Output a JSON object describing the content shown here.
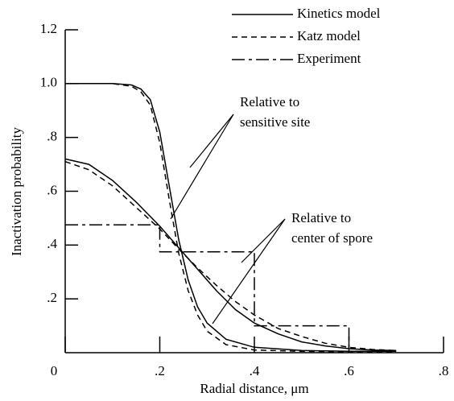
{
  "chart_data": {
    "type": "line",
    "ylabel": "Inactivation probability",
    "xlabel": "Radial distance, μm",
    "xlim": [
      0,
      0.8
    ],
    "ylim": [
      0,
      1.2
    ],
    "xticks": [
      0,
      {
        "value": 0.2,
        "label": ".2"
      },
      {
        "value": 0.4,
        "label": ".4"
      },
      {
        "value": 0.6,
        "label": ".6"
      },
      {
        "value": 0.8,
        "label": ".8"
      }
    ],
    "yticks": [
      {
        "value": 0.2,
        "label": ".2"
      },
      {
        "value": 0.4,
        "label": ".4"
      },
      {
        "value": 0.6,
        "label": ".6"
      },
      {
        "value": 0.8,
        "label": ".8"
      },
      {
        "value": 1.0,
        "label": "1.0"
      },
      {
        "value": 1.2,
        "label": "1.2"
      }
    ],
    "series": [
      {
        "name": "Kinetics model",
        "color": "#000000",
        "line_style": "solid",
        "x": [
          0,
          0.05,
          0.1,
          0.14,
          0.16,
          0.18,
          0.2,
          0.22,
          0.24,
          0.26,
          0.28,
          0.3,
          0.34,
          0.4,
          0.5,
          0.6,
          0.7
        ],
        "values": [
          1,
          1,
          1,
          0.995,
          0.98,
          0.94,
          0.82,
          0.62,
          0.42,
          0.27,
          0.17,
          0.11,
          0.05,
          0.02,
          0.008,
          0.005,
          0.005
        ]
      },
      {
        "name": "Kinetics model",
        "color": "#000000",
        "line_style": "solid",
        "x": [
          0,
          0.05,
          0.1,
          0.15,
          0.2,
          0.24,
          0.28,
          0.32,
          0.36,
          0.4,
          0.45,
          0.5,
          0.55,
          0.6,
          0.65,
          0.7
        ],
        "values": [
          0.72,
          0.7,
          0.64,
          0.56,
          0.47,
          0.39,
          0.31,
          0.23,
          0.16,
          0.11,
          0.07,
          0.04,
          0.025,
          0.015,
          0.01,
          0.008
        ]
      },
      {
        "name": "Katz model",
        "color": "#000000",
        "line_style": "dashed",
        "x": [
          0,
          0.05,
          0.1,
          0.14,
          0.16,
          0.18,
          0.2,
          0.22,
          0.24,
          0.26,
          0.28,
          0.3,
          0.34,
          0.4,
          0.5,
          0.6,
          0.7
        ],
        "values": [
          1,
          1,
          1,
          0.99,
          0.97,
          0.92,
          0.78,
          0.57,
          0.37,
          0.23,
          0.14,
          0.08,
          0.03,
          0.01,
          0.005,
          0.003,
          0.003
        ]
      },
      {
        "name": "Katz model",
        "color": "#000000",
        "line_style": "dashed",
        "x": [
          0,
          0.05,
          0.1,
          0.15,
          0.2,
          0.24,
          0.28,
          0.32,
          0.36,
          0.4,
          0.45,
          0.5,
          0.55,
          0.6,
          0.65,
          0.7
        ],
        "values": [
          0.71,
          0.68,
          0.62,
          0.54,
          0.46,
          0.385,
          0.315,
          0.25,
          0.19,
          0.14,
          0.09,
          0.06,
          0.035,
          0.02,
          0.012,
          0.008
        ]
      },
      {
        "name": "Experiment",
        "color": "#000000",
        "line_style": "dashdot",
        "x": [
          0,
          0.2,
          0.2,
          0.4,
          0.4,
          0.6,
          0.6
        ],
        "values": [
          0.475,
          0.475,
          0.375,
          0.375,
          0.1,
          0.1,
          0.01
        ]
      }
    ],
    "annotations": [
      {
        "lines": [
          "Relative to",
          "sensitive site"
        ]
      },
      {
        "lines": [
          "Relative to",
          "center of spore"
        ]
      }
    ]
  }
}
